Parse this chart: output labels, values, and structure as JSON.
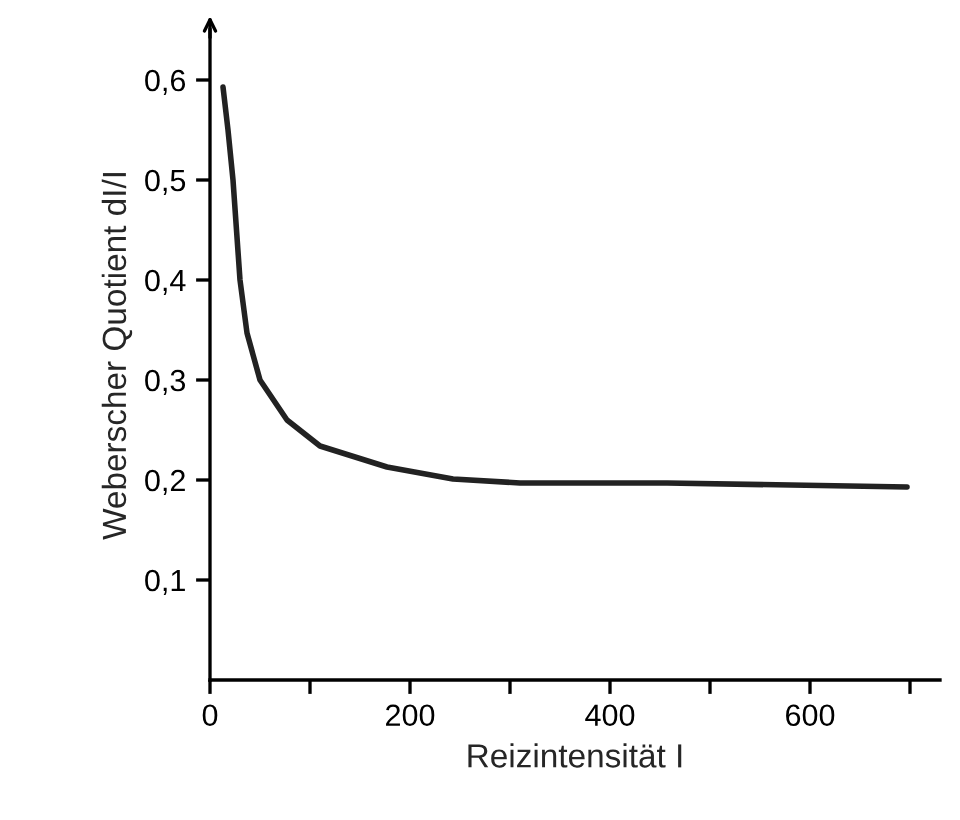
{
  "chart_data": {
    "type": "line",
    "xlabel": "Reizintensität I",
    "ylabel": "Weberscher Quotient dI/I",
    "series": [
      {
        "color": "#222222",
        "x": [
          13,
          18,
          23,
          30,
          37,
          50,
          77,
          110,
          177,
          243,
          310,
          457,
          697
        ],
        "values": [
          0.593,
          0.55,
          0.5,
          0.4,
          0.347,
          0.3,
          0.26,
          0.234,
          0.213,
          0.201,
          0.197,
          0.197,
          0.193
        ]
      }
    ],
    "xlim": [
      0,
      730
    ],
    "ylim": [
      0,
      0.65
    ],
    "xticks": [
      {
        "value": 0,
        "label": "0"
      },
      {
        "value": 100,
        "label": null
      },
      200,
      {
        "value": 300,
        "label": null
      },
      400,
      {
        "value": 500,
        "label": null
      },
      600,
      {
        "value": 700,
        "label": null
      }
    ],
    "yticks": [
      {
        "value": 0.1,
        "label": "0,1"
      },
      {
        "value": 0.2,
        "label": "0,2"
      },
      {
        "value": 0.3,
        "label": "0,3"
      },
      {
        "value": 0.4,
        "label": "0,4"
      },
      {
        "value": 0.5,
        "label": "0,5"
      },
      {
        "value": 0.6,
        "label": "0,6"
      }
    ],
    "grid": false,
    "legend": false,
    "marker": "none",
    "line_style": "solid"
  }
}
